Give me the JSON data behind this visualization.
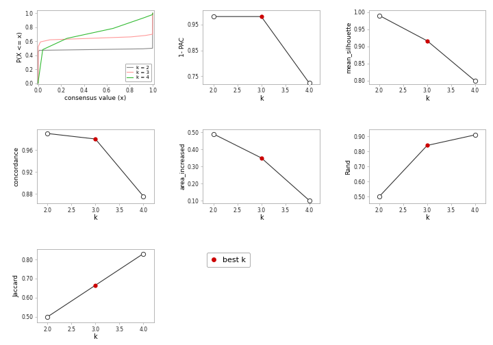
{
  "ecdf": {
    "k2": {
      "color": "#888888"
    },
    "k3": {
      "color": "#FF9999"
    },
    "k4": {
      "color": "#33BB33"
    }
  },
  "pac": {
    "k": [
      2,
      3,
      4
    ],
    "y": [
      0.981,
      0.981,
      0.724
    ],
    "best_k_idx": 1,
    "ylabel": "1- PAC",
    "ylim": [
      0.72,
      1.005
    ],
    "yticks": [
      0.75,
      0.85,
      0.95
    ]
  },
  "silhouette": {
    "k": [
      2,
      3,
      4
    ],
    "y": [
      0.99,
      0.916,
      0.799
    ],
    "best_k_idx": 1,
    "ylabel": "mean_silhouette",
    "ylim": [
      0.79,
      1.005
    ],
    "yticks": [
      0.8,
      0.85,
      0.9,
      0.95,
      1.0
    ]
  },
  "concordance": {
    "k": [
      2,
      3,
      4
    ],
    "y": [
      0.99,
      0.98,
      0.876
    ],
    "best_k_idx": 1,
    "ylabel": "concordance",
    "ylim": [
      0.863,
      0.997
    ],
    "yticks": [
      0.88,
      0.92,
      0.96
    ]
  },
  "area": {
    "k": [
      2,
      3,
      4
    ],
    "y": [
      0.49,
      0.35,
      0.102
    ],
    "best_k_idx": 1,
    "ylabel": "area_increased",
    "ylim": [
      0.085,
      0.515
    ],
    "yticks": [
      0.1,
      0.2,
      0.3,
      0.4,
      0.5
    ]
  },
  "rand": {
    "k": [
      2,
      3,
      4
    ],
    "y": [
      0.5,
      0.84,
      0.91
    ],
    "best_k_idx": 1,
    "ylabel": "Rand",
    "ylim": [
      0.455,
      0.945
    ],
    "yticks": [
      0.5,
      0.6,
      0.7,
      0.8,
      0.9
    ]
  },
  "jaccard": {
    "k": [
      2,
      3,
      4
    ],
    "y": [
      0.5,
      0.665,
      0.83
    ],
    "best_k_idx": 1,
    "ylabel": "Jaccard",
    "ylim": [
      0.47,
      0.855
    ],
    "yticks": [
      0.5,
      0.6,
      0.7,
      0.8
    ]
  },
  "best_k_color": "#CC0000",
  "bg_color": "#FFFFFF"
}
